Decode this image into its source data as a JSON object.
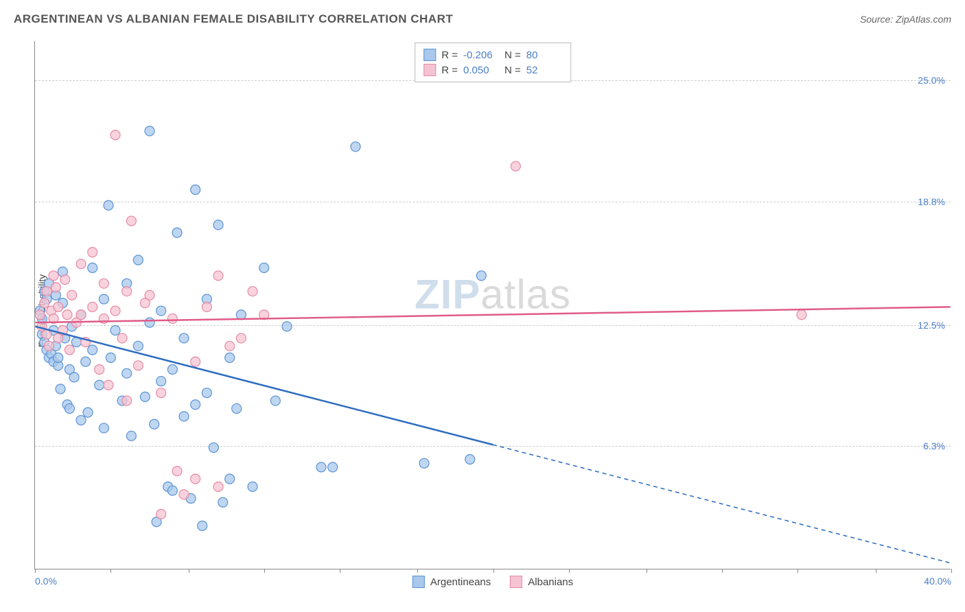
{
  "header": {
    "title": "ARGENTINEAN VS ALBANIAN FEMALE DISABILITY CORRELATION CHART",
    "source": "Source: ZipAtlas.com"
  },
  "watermark": {
    "part1": "ZIP",
    "part2": "atlas"
  },
  "chart": {
    "type": "scatter",
    "ylabel": "Female Disability",
    "xlim": [
      0,
      40
    ],
    "ylim": [
      0,
      27
    ],
    "xticks": [
      0,
      3.3,
      6.7,
      10,
      13.3,
      16.7,
      20,
      23.3,
      26.7,
      30,
      33.3,
      36.7,
      40
    ],
    "xtick_labels": {
      "0": "0.0%",
      "40": "40.0%"
    },
    "yticks": [
      6.3,
      12.5,
      18.8,
      25.0
    ],
    "ytick_labels": [
      "6.3%",
      "12.5%",
      "18.8%",
      "25.0%"
    ],
    "grid_color": "#cccccc",
    "axis_color": "#888888",
    "background_color": "#ffffff",
    "tick_label_color": "#4a7dc9",
    "series": [
      {
        "name": "Argentineans",
        "marker_fill": "#a9c8ec",
        "marker_stroke": "#5b93d4",
        "line_color": "#2d6cc0",
        "marker_radius": 7,
        "R": "-0.206",
        "N": "80",
        "trend": {
          "x1": 0,
          "y1": 12.4,
          "x2": 40,
          "y2": 0.3,
          "solid_until_x": 20
        },
        "points": [
          [
            0.2,
            13.2
          ],
          [
            0.3,
            12.8
          ],
          [
            0.3,
            12.0
          ],
          [
            0.4,
            11.6
          ],
          [
            0.4,
            14.2
          ],
          [
            0.5,
            11.2
          ],
          [
            0.5,
            13.8
          ],
          [
            0.6,
            10.8
          ],
          [
            0.6,
            14.6
          ],
          [
            0.7,
            11.0
          ],
          [
            0.8,
            10.6
          ],
          [
            0.8,
            12.2
          ],
          [
            0.9,
            11.4
          ],
          [
            0.9,
            14.0
          ],
          [
            1.0,
            10.4
          ],
          [
            1.0,
            10.8
          ],
          [
            1.1,
            9.2
          ],
          [
            1.2,
            13.6
          ],
          [
            1.2,
            15.2
          ],
          [
            1.3,
            11.8
          ],
          [
            1.4,
            8.4
          ],
          [
            1.5,
            10.2
          ],
          [
            1.5,
            8.2
          ],
          [
            1.6,
            12.4
          ],
          [
            1.7,
            9.8
          ],
          [
            1.8,
            11.6
          ],
          [
            2.0,
            7.6
          ],
          [
            2.0,
            13.0
          ],
          [
            2.2,
            10.6
          ],
          [
            2.3,
            8.0
          ],
          [
            2.5,
            11.2
          ],
          [
            2.5,
            15.4
          ],
          [
            2.8,
            9.4
          ],
          [
            3.0,
            7.2
          ],
          [
            3.0,
            13.8
          ],
          [
            3.2,
            18.6
          ],
          [
            3.3,
            10.8
          ],
          [
            3.5,
            12.2
          ],
          [
            3.8,
            8.6
          ],
          [
            4.0,
            10.0
          ],
          [
            4.0,
            14.6
          ],
          [
            4.2,
            6.8
          ],
          [
            4.5,
            11.4
          ],
          [
            4.5,
            15.8
          ],
          [
            4.8,
            8.8
          ],
          [
            5.0,
            12.6
          ],
          [
            5.0,
            22.4
          ],
          [
            5.2,
            7.4
          ],
          [
            5.3,
            2.4
          ],
          [
            5.5,
            9.6
          ],
          [
            5.5,
            13.2
          ],
          [
            5.8,
            4.2
          ],
          [
            6.0,
            4.0
          ],
          [
            6.0,
            10.2
          ],
          [
            6.2,
            17.2
          ],
          [
            6.5,
            7.8
          ],
          [
            6.5,
            11.8
          ],
          [
            6.8,
            3.6
          ],
          [
            7.0,
            8.4
          ],
          [
            7.0,
            19.4
          ],
          [
            7.3,
            2.2
          ],
          [
            7.5,
            9.0
          ],
          [
            7.5,
            13.8
          ],
          [
            7.8,
            6.2
          ],
          [
            8.0,
            17.6
          ],
          [
            8.2,
            3.4
          ],
          [
            8.5,
            4.6
          ],
          [
            8.5,
            10.8
          ],
          [
            8.8,
            8.2
          ],
          [
            9.0,
            13.0
          ],
          [
            9.5,
            4.2
          ],
          [
            10.0,
            15.4
          ],
          [
            10.5,
            8.6
          ],
          [
            11.0,
            12.4
          ],
          [
            12.5,
            5.2
          ],
          [
            13.0,
            5.2
          ],
          [
            14.0,
            21.6
          ],
          [
            17.0,
            5.4
          ],
          [
            19.0,
            5.6
          ],
          [
            19.5,
            15.0
          ]
        ]
      },
      {
        "name": "Albanians",
        "marker_fill": "#f5c4d2",
        "marker_stroke": "#e68aa6",
        "line_color": "#e05a88",
        "marker_radius": 7,
        "R": "0.050",
        "N": "52",
        "trend": {
          "x1": 0,
          "y1": 12.6,
          "x2": 40,
          "y2": 13.4,
          "solid_until_x": 40
        },
        "points": [
          [
            0.2,
            13.0
          ],
          [
            0.3,
            12.4
          ],
          [
            0.4,
            13.6
          ],
          [
            0.5,
            14.2
          ],
          [
            0.5,
            12.0
          ],
          [
            0.6,
            11.4
          ],
          [
            0.7,
            13.2
          ],
          [
            0.8,
            15.0
          ],
          [
            0.8,
            12.8
          ],
          [
            0.9,
            14.4
          ],
          [
            1.0,
            11.8
          ],
          [
            1.0,
            13.4
          ],
          [
            1.2,
            12.2
          ],
          [
            1.3,
            14.8
          ],
          [
            1.4,
            13.0
          ],
          [
            1.5,
            11.2
          ],
          [
            1.6,
            14.0
          ],
          [
            1.8,
            12.6
          ],
          [
            2.0,
            13.0
          ],
          [
            2.0,
            15.6
          ],
          [
            2.2,
            11.6
          ],
          [
            2.5,
            13.4
          ],
          [
            2.5,
            16.2
          ],
          [
            2.8,
            10.2
          ],
          [
            3.0,
            12.8
          ],
          [
            3.0,
            14.6
          ],
          [
            3.2,
            9.4
          ],
          [
            3.5,
            13.2
          ],
          [
            3.5,
            22.2
          ],
          [
            3.8,
            11.8
          ],
          [
            4.0,
            8.6
          ],
          [
            4.0,
            14.2
          ],
          [
            4.2,
            17.8
          ],
          [
            4.5,
            10.4
          ],
          [
            4.8,
            13.6
          ],
          [
            5.0,
            14.0
          ],
          [
            5.5,
            9.0
          ],
          [
            5.5,
            2.8
          ],
          [
            6.0,
            12.8
          ],
          [
            6.2,
            5.0
          ],
          [
            6.5,
            3.8
          ],
          [
            7.0,
            10.6
          ],
          [
            7.0,
            4.6
          ],
          [
            7.5,
            13.4
          ],
          [
            8.0,
            15.0
          ],
          [
            8.0,
            4.2
          ],
          [
            8.5,
            11.4
          ],
          [
            9.0,
            11.8
          ],
          [
            9.5,
            14.2
          ],
          [
            10.0,
            13.0
          ],
          [
            21.0,
            20.6
          ],
          [
            33.5,
            13.0
          ]
        ]
      }
    ]
  },
  "legend": {
    "stat_label_R": "R =",
    "stat_label_N": "N ="
  }
}
